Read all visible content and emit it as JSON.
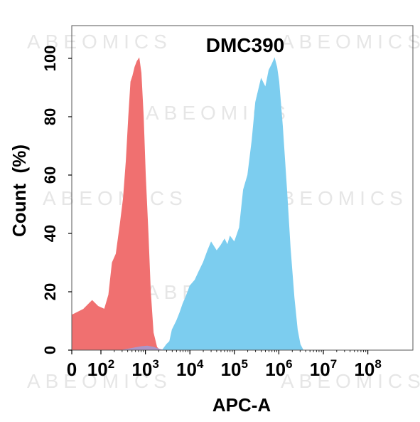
{
  "watermark": "ABEOMICS",
  "chart_data": {
    "type": "area",
    "title": "DMC390",
    "xlabel": "APC-A",
    "ylabel": "Count  (%)",
    "x_scale": "log",
    "ylim": [
      0,
      100
    ],
    "grid": false,
    "legend": "none",
    "x_ticks": [
      {
        "base": "0",
        "exp": ""
      },
      {
        "base": "10",
        "exp": "2"
      },
      {
        "base": "10",
        "exp": "3"
      },
      {
        "base": "10",
        "exp": "4"
      },
      {
        "base": "10",
        "exp": "5"
      },
      {
        "base": "10",
        "exp": "6"
      },
      {
        "base": "10",
        "exp": "7"
      },
      {
        "base": "10",
        "exp": "8"
      }
    ],
    "y_ticks": [
      "0",
      "20",
      "40",
      "60",
      "80",
      "100"
    ],
    "series": [
      {
        "color": "#f07070",
        "points": [
          [
            0,
            12
          ],
          [
            40,
            14
          ],
          [
            70,
            17
          ],
          [
            90,
            15
          ],
          [
            120,
            14
          ],
          [
            150,
            19
          ],
          [
            180,
            30
          ],
          [
            220,
            33
          ],
          [
            270,
            43
          ],
          [
            320,
            52
          ],
          [
            370,
            65
          ],
          [
            420,
            80
          ],
          [
            470,
            92
          ],
          [
            520,
            94
          ],
          [
            580,
            97
          ],
          [
            650,
            99
          ],
          [
            720,
            100
          ],
          [
            800,
            95
          ],
          [
            900,
            80
          ],
          [
            1000,
            60
          ],
          [
            1150,
            40
          ],
          [
            1300,
            20
          ],
          [
            1500,
            6
          ],
          [
            1800,
            1
          ],
          [
            2100,
            0
          ]
        ]
      },
      {
        "color": "#7ccdef",
        "points": [
          [
            2400,
            0
          ],
          [
            3000,
            2
          ],
          [
            3500,
            3
          ],
          [
            4000,
            7
          ],
          [
            5000,
            10
          ],
          [
            6000,
            13
          ],
          [
            7000,
            16
          ],
          [
            8000,
            18
          ],
          [
            9000,
            20
          ],
          [
            10000,
            22
          ],
          [
            13000,
            24
          ],
          [
            16000,
            27
          ],
          [
            20000,
            30
          ],
          [
            25000,
            34
          ],
          [
            30000,
            37
          ],
          [
            40000,
            34
          ],
          [
            50000,
            36
          ],
          [
            60000,
            38
          ],
          [
            70000,
            36
          ],
          [
            80000,
            39
          ],
          [
            100000,
            37
          ],
          [
            130000,
            42
          ],
          [
            160000,
            55
          ],
          [
            200000,
            60
          ],
          [
            250000,
            72
          ],
          [
            300000,
            85
          ],
          [
            400000,
            93
          ],
          [
            500000,
            90
          ],
          [
            600000,
            96
          ],
          [
            700000,
            98
          ],
          [
            800000,
            100
          ],
          [
            900000,
            97
          ],
          [
            1000000,
            92
          ],
          [
            1200000,
            77
          ],
          [
            1500000,
            55
          ],
          [
            1800000,
            35
          ],
          [
            2200000,
            18
          ],
          [
            2600000,
            7
          ],
          [
            3000000,
            2
          ],
          [
            3500000,
            0
          ]
        ]
      },
      {
        "color": "#a59ad0",
        "points": [
          [
            300,
            0
          ],
          [
            500,
            0.6
          ],
          [
            800,
            1.2
          ],
          [
            1100,
            1.4
          ],
          [
            1500,
            1.0
          ],
          [
            2100,
            0.3
          ],
          [
            2500,
            0
          ]
        ]
      }
    ]
  }
}
